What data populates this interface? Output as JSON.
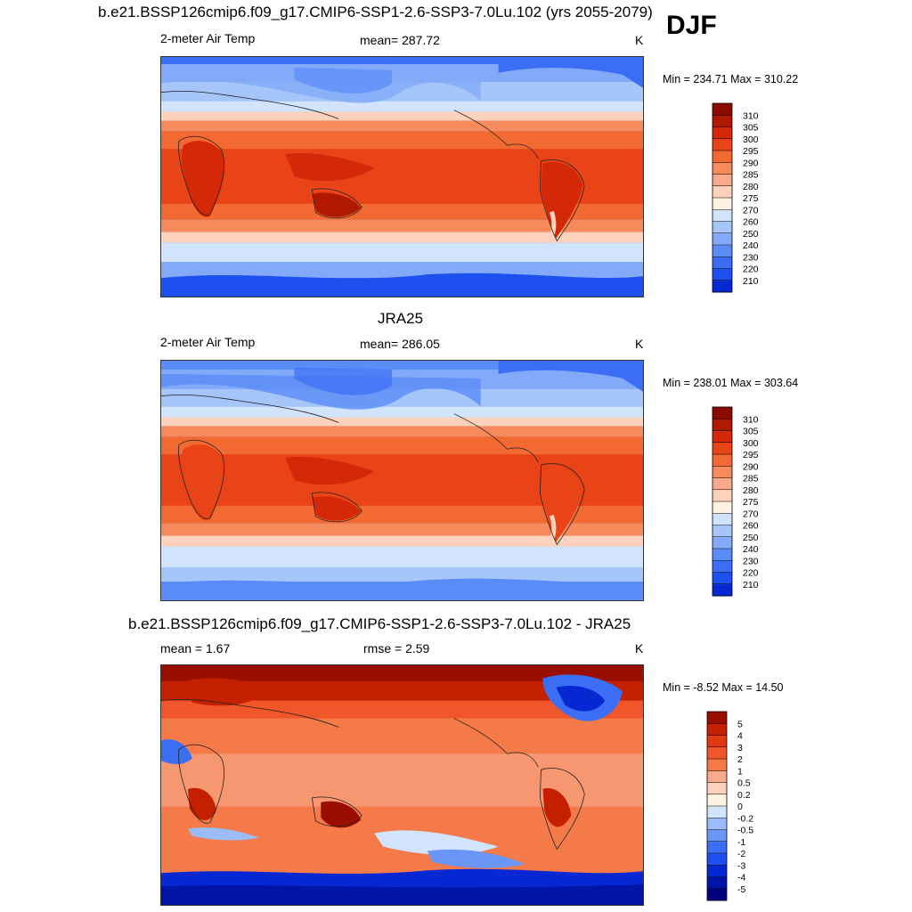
{
  "season": "DJF",
  "colors": {
    "abs_scale": [
      "#000080",
      "#0014a8",
      "#0628d2",
      "#1e50f0",
      "#3c6ef5",
      "#5a8cf8",
      "#82aaf8",
      "#a6c6fa",
      "#d2e3fc",
      "#fff2e2",
      "#fcd2bc",
      "#f8aa8c",
      "#f58a5c",
      "#f26a32",
      "#e84418",
      "#d42808",
      "#b01800",
      "#8a0a00"
    ],
    "diff_scale": [
      "#000080",
      "#0014a8",
      "#0628d2",
      "#1e50f0",
      "#3c6ef5",
      "#6a96f7",
      "#9cbcf9",
      "#d2e3fc",
      "#fff2e2",
      "#fcd2bc",
      "#f8aa8c",
      "#f47a4a",
      "#f0562a",
      "#e03a10",
      "#c42000",
      "#9a0e00"
    ]
  },
  "panels": [
    {
      "title": "b.e21.BSSP126cmip6.f09_g17.CMIP6-SSP1-2.6-SSP3-7.0Lu.102 (yrs 2055-2079)",
      "variable": "2-meter Air Temp",
      "stat_text": "mean= 287.72",
      "units": "K",
      "minmax": "Min = 234.71 Max = 310.22"
    },
    {
      "title": "JRA25",
      "variable": "2-meter Air Temp",
      "stat_text": "mean= 286.05",
      "units": "K",
      "minmax": "Min = 238.01 Max = 303.64"
    },
    {
      "title": "b.e21.BSSP126cmip6.f09_g17.CMIP6-SSP1-2.6-SSP3-7.0Lu.102 - JRA25",
      "stat_left": "mean =   1.67",
      "stat_text": "rmse =   2.59",
      "units": "K",
      "minmax": "Min =  -8.52 Max =  14.50"
    }
  ],
  "chart_data": [
    {
      "type": "heatmap",
      "title": "b.e21.BSSP126cmip6.f09_g17.CMIP6-SSP1-2.6-SSP3-7.0Lu.102 (yrs 2055-2079)",
      "variable": "2-meter Air Temp",
      "units": "K",
      "mean": 287.72,
      "min": 234.71,
      "max": 310.22,
      "colorbar_levels": [
        "310",
        "305",
        "300",
        "295",
        "290",
        "285",
        "280",
        "275",
        "270",
        "260",
        "250",
        "240",
        "230",
        "220",
        "210"
      ]
    },
    {
      "type": "heatmap",
      "title": "JRA25",
      "variable": "2-meter Air Temp",
      "units": "K",
      "mean": 286.05,
      "min": 238.01,
      "max": 303.64,
      "colorbar_levels": [
        "310",
        "305",
        "300",
        "295",
        "290",
        "285",
        "280",
        "275",
        "270",
        "260",
        "250",
        "240",
        "230",
        "220",
        "210"
      ]
    },
    {
      "type": "heatmap",
      "title": "b.e21.BSSP126cmip6.f09_g17.CMIP6-SSP1-2.6-SSP3-7.0Lu.102 - JRA25",
      "units": "K",
      "mean": 1.67,
      "rmse": 2.59,
      "min": -8.52,
      "max": 14.5,
      "colorbar_levels": [
        "5",
        "4",
        "3",
        "2",
        "1",
        "0.5",
        "0.2",
        "0",
        "-0.2",
        "-0.5",
        "-1",
        "-2",
        "-3",
        "-4",
        "-5"
      ]
    }
  ]
}
